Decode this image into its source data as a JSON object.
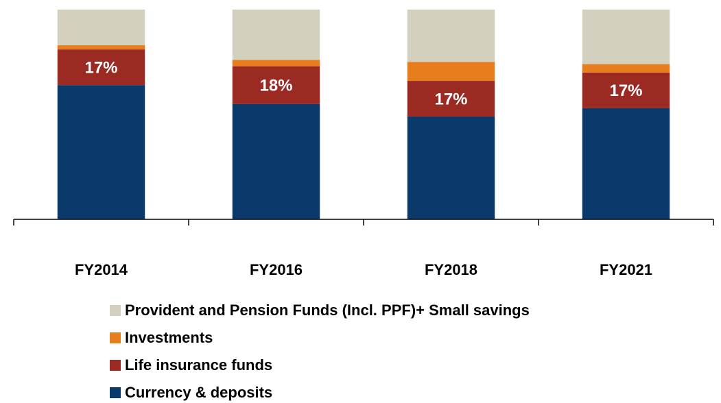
{
  "chart_data": {
    "type": "stacked_bar",
    "categories": [
      "FY2014",
      "FY2016",
      "FY2018",
      "FY2021"
    ],
    "series": [
      {
        "name": "Currency & deposits",
        "color": "#0a3a6b",
        "values": [
          64,
          55,
          49,
          53
        ]
      },
      {
        "name": "Life insurance funds",
        "color": "#9b2a22",
        "values": [
          17,
          18,
          17,
          17
        ],
        "value_labels": [
          "17%",
          "18%",
          "17%",
          "17%"
        ]
      },
      {
        "name": "Investments",
        "color": "#e87d1e",
        "values": [
          2,
          3,
          9,
          4
        ]
      },
      {
        "name": "Provident and Pension Funds (Incl. PPF)+ Small savings",
        "color": "#d3d0c0",
        "values": [
          17,
          24,
          25,
          26
        ]
      }
    ],
    "ylim": [
      0,
      100
    ]
  }
}
